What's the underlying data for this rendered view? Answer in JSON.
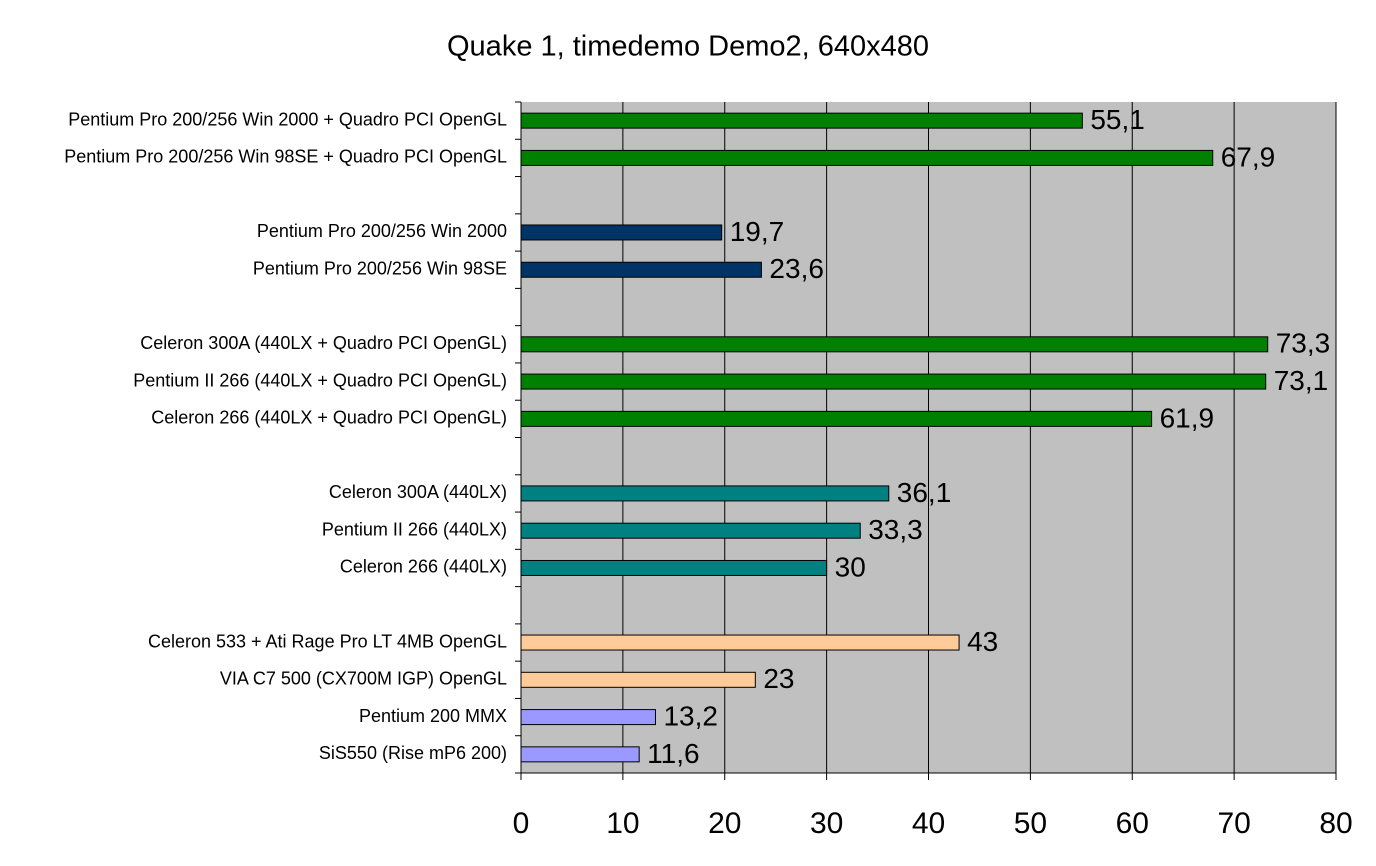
{
  "chart_data": {
    "type": "hbar",
    "title": "Quake 1, timedemo Demo2, 640x480",
    "categories": [
      "Pentium Pro 200/256 Win 2000 + Quadro PCI OpenGL",
      "Pentium Pro 200/256 Win 98SE + Quadro PCI OpenGL",
      null,
      "Pentium Pro 200/256 Win 2000",
      "Pentium Pro 200/256 Win 98SE",
      null,
      "Celeron 300A (440LX + Quadro PCI OpenGL)",
      "Pentium II 266 (440LX + Quadro PCI OpenGL)",
      "Celeron 266 (440LX + Quadro PCI OpenGL)",
      null,
      "Celeron 300A (440LX)",
      "Pentium II 266 (440LX)",
      "Celeron 266 (440LX)",
      null,
      "Celeron 533 + Ati Rage Pro LT 4MB OpenGL",
      "VIA C7 500 (CX700M IGP) OpenGL",
      "Pentium 200 MMX",
      "SiS550 (Rise mP6 200)"
    ],
    "values": [
      55.1,
      67.9,
      null,
      19.7,
      23.6,
      null,
      73.3,
      73.1,
      61.9,
      null,
      36.1,
      33.3,
      30,
      null,
      43,
      23,
      13.2,
      11.6
    ],
    "value_labels": [
      "55,1",
      "67,9",
      null,
      "19,7",
      "23,6",
      null,
      "73,3",
      "73,1",
      "61,9",
      null,
      "36,1",
      "33,3",
      "30",
      null,
      "43",
      "23",
      "13,2",
      "11,6"
    ],
    "colors": [
      "#008000",
      "#008000",
      null,
      "#003366",
      "#003366",
      null,
      "#008000",
      "#008000",
      "#008000",
      null,
      "#008080",
      "#008080",
      "#008080",
      null,
      "#ffcc99",
      "#ffcc99",
      "#9999ff",
      "#9999ff"
    ],
    "xlim": [
      0,
      80
    ],
    "xticks": [
      0,
      10,
      20,
      30,
      40,
      50,
      60,
      70,
      80
    ],
    "grid": true
  }
}
